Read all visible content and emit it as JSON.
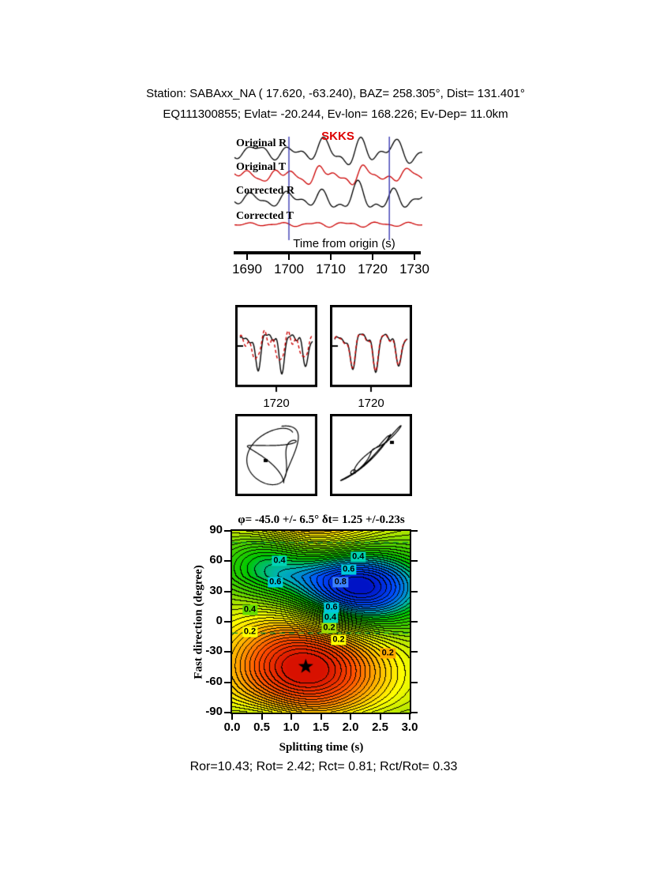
{
  "page": {
    "bg": "#ffffff"
  },
  "header": {
    "line1": "Station: SABAxx_NA ( 17.620, -63.240), BAZ= 258.305°, Dist= 131.401°",
    "line2": "EQ111300855; Evlat= -20.244, Ev-lon= 168.226; Ev-Dep= 11.0km"
  },
  "footer": {
    "text": "Ror=10.43; Rot= 2.42; Rct= 0.81; Rct/Rot= 0.33"
  },
  "chart_data": [
    {
      "id": "seismograms",
      "type": "line",
      "xlabel": "Time from origin (s)",
      "xrange": [
        1687,
        1732
      ],
      "xticks": [
        1690,
        1700,
        1710,
        1720,
        1730
      ],
      "phase_label": "SKKS",
      "phase_color": "#dd0000",
      "window_markers": [
        1700,
        1724
      ],
      "marker_color": "#3b3bb4",
      "traces": [
        {
          "label": "Original R",
          "color": "#000000",
          "baseline": 24,
          "amp": 13,
          "env": {
            "c": 1717,
            "w": 13,
            "floor": 0.42
          },
          "comps": [
            [
              1,
              0.12,
              0
            ],
            [
              0.6,
              0.22,
              1.8
            ],
            [
              0.35,
              0.065,
              0.9
            ]
          ]
        },
        {
          "label": "Original T",
          "color": "#cc0000",
          "baseline": 54,
          "amp": 8,
          "env": {
            "c": 1712,
            "w": 14,
            "floor": 0.5
          },
          "comps": [
            [
              1,
              0.1,
              2.4
            ],
            [
              0.65,
              0.185,
              0.6
            ],
            [
              0.4,
              0.29,
              2
            ]
          ]
        },
        {
          "label": "Corrected R",
          "color": "#000000",
          "baseline": 84,
          "amp": 13,
          "env": {
            "c": 1718,
            "w": 13,
            "floor": 0.42
          },
          "comps": [
            [
              1,
              0.12,
              0.5
            ],
            [
              0.55,
              0.23,
              1
            ],
            [
              0.3,
              0.07,
              2.4
            ]
          ]
        },
        {
          "label": "Corrected T",
          "color": "#cc0000",
          "baseline": 116,
          "amp": 2.5,
          "env": {
            "c": 1714,
            "w": 16,
            "floor": 0.5
          },
          "comps": [
            [
              1,
              0.13,
              1.2
            ],
            [
              0.5,
              0.24,
              0.3
            ]
          ]
        }
      ]
    },
    {
      "id": "waveform-pairs",
      "type": "line",
      "panels": [
        {
          "tick_label": "1720",
          "series": [
            {
              "color": "#000000",
              "dash": false,
              "amp": 20,
              "comps": [
                [
                  1,
                  3,
                  0.2
                ],
                [
                  0.55,
                  6.1,
                  1.3
                ],
                [
                  0.25,
                  9.3,
                  2.6
                ]
              ]
            },
            {
              "color": "#cc0000",
              "dash": true,
              "amp": 15,
              "comps": [
                [
                  1,
                  3,
                  0.85
                ],
                [
                  0.5,
                  6.1,
                  2.1
                ],
                [
                  0.3,
                  9.3,
                  0.5
                ]
              ]
            }
          ]
        },
        {
          "tick_label": "1720",
          "series": [
            {
              "color": "#000000",
              "dash": false,
              "amp": 20,
              "comps": [
                [
                  1,
                  3.1,
                  0.1
                ],
                [
                  0.5,
                  6.3,
                  1
                ],
                [
                  0.2,
                  9.6,
                  2.2
                ]
              ]
            },
            {
              "color": "#cc0000",
              "dash": true,
              "amp": 19,
              "comps": [
                [
                  1,
                  3.1,
                  0.2
                ],
                [
                  0.5,
                  6.3,
                  1.1
                ],
                [
                  0.2,
                  9.6,
                  2.3
                ]
              ]
            }
          ]
        }
      ]
    },
    {
      "id": "particle-motion",
      "type": "scatter",
      "panels": [
        {
          "scale": 26,
          "T": 13,
          "x": [
            [
              1,
              1,
              0
            ],
            [
              0.45,
              2.05,
              0.6
            ]
          ],
          "y": [
            [
              1,
              0.95,
              1.77
            ],
            [
              0.5,
              1.6,
              1
            ]
          ],
          "marker": [
            36,
            57
          ]
        },
        {
          "scale": 30,
          "T": 13,
          "x": [
            [
              1,
              1,
              0
            ],
            [
              0.35,
              2.3,
              1.2
            ]
          ],
          "y": [
            [
              0.95,
              1,
              0.05
            ],
            [
              0.3,
              2.3,
              1.25
            ],
            [
              0.12,
              3.1,
              0.4
            ]
          ],
          "marker": [
            76,
            34
          ]
        }
      ]
    },
    {
      "id": "splitting-map",
      "type": "heatmap",
      "title": "φ= -45.0 +/- 6.5° δt= 1.25 +/-0.23s",
      "xlabel": "Splitting time (s)",
      "ylabel": "Fast direction (degree)",
      "xrange": [
        0,
        3
      ],
      "yrange": [
        -90,
        90
      ],
      "xticks": [
        "0.0",
        "0.5",
        "1.0",
        "1.5",
        "2.0",
        "2.5",
        "3.0"
      ],
      "yticks": [
        90,
        60,
        30,
        0,
        -30,
        -60,
        -90
      ],
      "best_fit": {
        "phi": -45,
        "phi_err": 6.5,
        "dt": 1.25,
        "dt_err": 0.23
      },
      "star": {
        "x": 1.25,
        "phi": -45
      },
      "contour_interval": 0.05,
      "clip": 0.93,
      "null_lines": {
        "phi": [
          -11.7,
          78.3
        ],
        "color": "#008c32"
      },
      "blobs": [
        {
          "amp": 1.0,
          "x": 1.25,
          "sx": 1.35,
          "phi": -45,
          "sphi": 58
        },
        {
          "amp": -1.05,
          "x": 2.1,
          "sx": 1.15,
          "phi": 32,
          "sphi": 40
        },
        {
          "amp": -0.45,
          "x": 0.55,
          "sx": 0.8,
          "phi": 62,
          "sphi": 35
        }
      ],
      "colormap": [
        [
          -1,
          "#0000b4"
        ],
        [
          -0.7,
          "#0050ff"
        ],
        [
          -0.5,
          "#00b4b4"
        ],
        [
          -0.35,
          "#00c800"
        ],
        [
          -0.12,
          "#50d200"
        ],
        [
          0.05,
          "#b4e600"
        ],
        [
          0.22,
          "#ffff00"
        ],
        [
          0.45,
          "#ffaa00"
        ],
        [
          0.68,
          "#ff5000"
        ],
        [
          1,
          "#cd0000"
        ]
      ],
      "contour_labels": [
        {
          "text": "0.4",
          "x": 0.8,
          "phi": 60,
          "bg": "#00d2b4"
        },
        {
          "text": "0.6",
          "x": 0.73,
          "phi": 39,
          "bg": "#00c8dc"
        },
        {
          "text": "0.4",
          "x": 2.13,
          "phi": 64,
          "bg": "#00d2b4"
        },
        {
          "text": "0.6",
          "x": 1.97,
          "phi": 52,
          "bg": "#00c8dc"
        },
        {
          "text": "0.8",
          "x": 1.83,
          "phi": 39,
          "bg": "#3c82ff"
        },
        {
          "text": "0.6",
          "x": 1.68,
          "phi": 14,
          "bg": "#00c8dc"
        },
        {
          "text": "0.4",
          "x": 1.66,
          "phi": 4,
          "bg": "#00d2b4"
        },
        {
          "text": "0.2",
          "x": 1.64,
          "phi": -6,
          "bg": "#a0dc00"
        },
        {
          "text": "0.2",
          "x": 1.8,
          "phi": -18,
          "bg": "#ffff00"
        },
        {
          "text": "0.2",
          "x": 0.3,
          "phi": -10,
          "bg": "#ffff00"
        },
        {
          "text": "0.4",
          "x": 0.3,
          "phi": 12,
          "bg": "#64dc00"
        },
        {
          "text": "0.2",
          "x": 2.63,
          "phi": -31,
          "bg": "#ffaa00"
        }
      ]
    }
  ]
}
